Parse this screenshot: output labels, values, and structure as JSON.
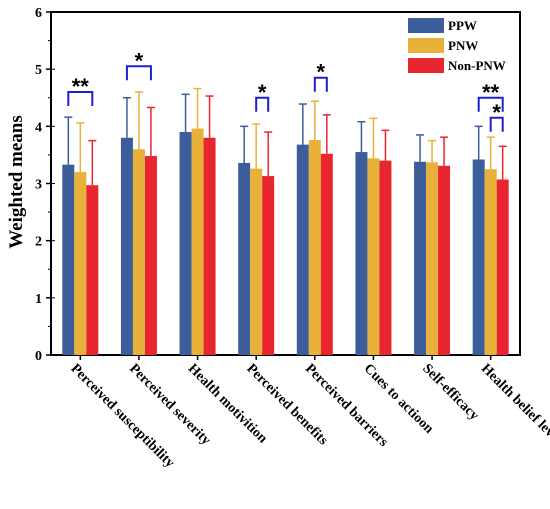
{
  "chart_data": {
    "type": "bar",
    "title": "",
    "xlabel": "",
    "ylabel": "Weighted means",
    "ylim": [
      0,
      6
    ],
    "yticks": [
      "0",
      "1",
      "2",
      "3",
      "4",
      "5",
      "6"
    ],
    "grid": false,
    "legend_position": "top-right",
    "categories": [
      "Perceived susceptibility",
      "Perceived severity",
      "Health motivition",
      "Perceived benefits",
      "Perceived barriers",
      "Cues to actioon",
      "Self-efficacy",
      "Health belief level"
    ],
    "series": [
      {
        "name": "PPW",
        "color": "#3b5d9a",
        "values": [
          3.33,
          3.8,
          3.9,
          3.36,
          3.68,
          3.55,
          3.38,
          3.42
        ],
        "error": [
          0.83,
          0.7,
          0.66,
          0.64,
          0.71,
          0.53,
          0.47,
          0.58
        ]
      },
      {
        "name": "PNW",
        "color": "#e8b23a",
        "values": [
          3.2,
          3.6,
          3.96,
          3.26,
          3.76,
          3.44,
          3.37,
          3.25
        ],
        "error": [
          0.86,
          1.0,
          0.7,
          0.78,
          0.68,
          0.7,
          0.38,
          0.56
        ]
      },
      {
        "name": "Non-PNW",
        "color": "#e82630",
        "values": [
          2.97,
          3.48,
          3.8,
          3.13,
          3.52,
          3.4,
          3.31,
          3.07
        ],
        "error": [
          0.78,
          0.85,
          0.73,
          0.77,
          0.68,
          0.53,
          0.5,
          0.58
        ]
      }
    ],
    "significance": [
      {
        "category": 0,
        "from": 0,
        "to": 2,
        "label": "**",
        "y": 4.6
      },
      {
        "category": 1,
        "from": 0,
        "to": 2,
        "label": "*",
        "y": 5.05
      },
      {
        "category": 3,
        "from": 1,
        "to": 2,
        "label": "*",
        "y": 4.5
      },
      {
        "category": 4,
        "from": 1,
        "to": 2,
        "label": "*",
        "y": 4.85
      },
      {
        "category": 7,
        "from": 0,
        "to": 2,
        "label": "**",
        "y": 4.5
      },
      {
        "category": 7,
        "from": 1,
        "to": 2,
        "label": "*",
        "y": 4.15
      }
    ],
    "bracket_color": "#1f1fcc"
  }
}
